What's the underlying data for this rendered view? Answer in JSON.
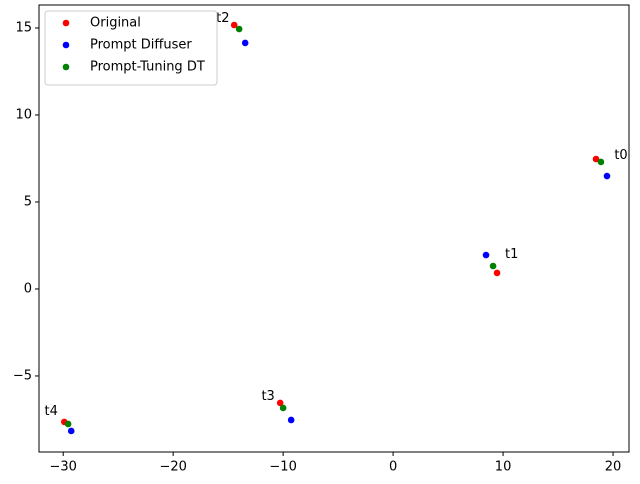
{
  "chart_data": {
    "type": "scatter",
    "xlim": [
      -32.2,
      21.45
    ],
    "ylim": [
      -9.37,
      16.32
    ],
    "xticks": [
      {
        "value": -30,
        "label": "−30"
      },
      {
        "value": -20,
        "label": "−20"
      },
      {
        "value": -10,
        "label": "−10"
      },
      0,
      10,
      20
    ],
    "yticks": [
      {
        "value": -5,
        "label": "−5"
      },
      0,
      5,
      10,
      15
    ],
    "legend": "upper left",
    "point_labels": [
      "t0",
      "t1",
      "t2",
      "t3",
      "t4"
    ],
    "series": [
      {
        "name": "Original",
        "color": "#ff0000",
        "x": [
          18.45,
          9.45,
          -14.45,
          -10.27,
          -29.9
        ],
        "values": [
          7.47,
          0.92,
          15.17,
          -6.55,
          -7.64
        ]
      },
      {
        "name": "Prompt Diffuser",
        "color": "#0000ff",
        "x": [
          19.45,
          8.45,
          -13.45,
          -9.27,
          -29.27
        ],
        "values": [
          6.49,
          1.95,
          14.14,
          -7.53,
          -8.16
        ]
      },
      {
        "name": "Prompt-Tuning DT",
        "color": "#008000",
        "x": [
          18.9,
          9.09,
          -14.0,
          -10.0,
          -29.55
        ],
        "values": [
          7.3,
          1.32,
          14.94,
          -6.84,
          -7.76
        ]
      }
    ]
  }
}
